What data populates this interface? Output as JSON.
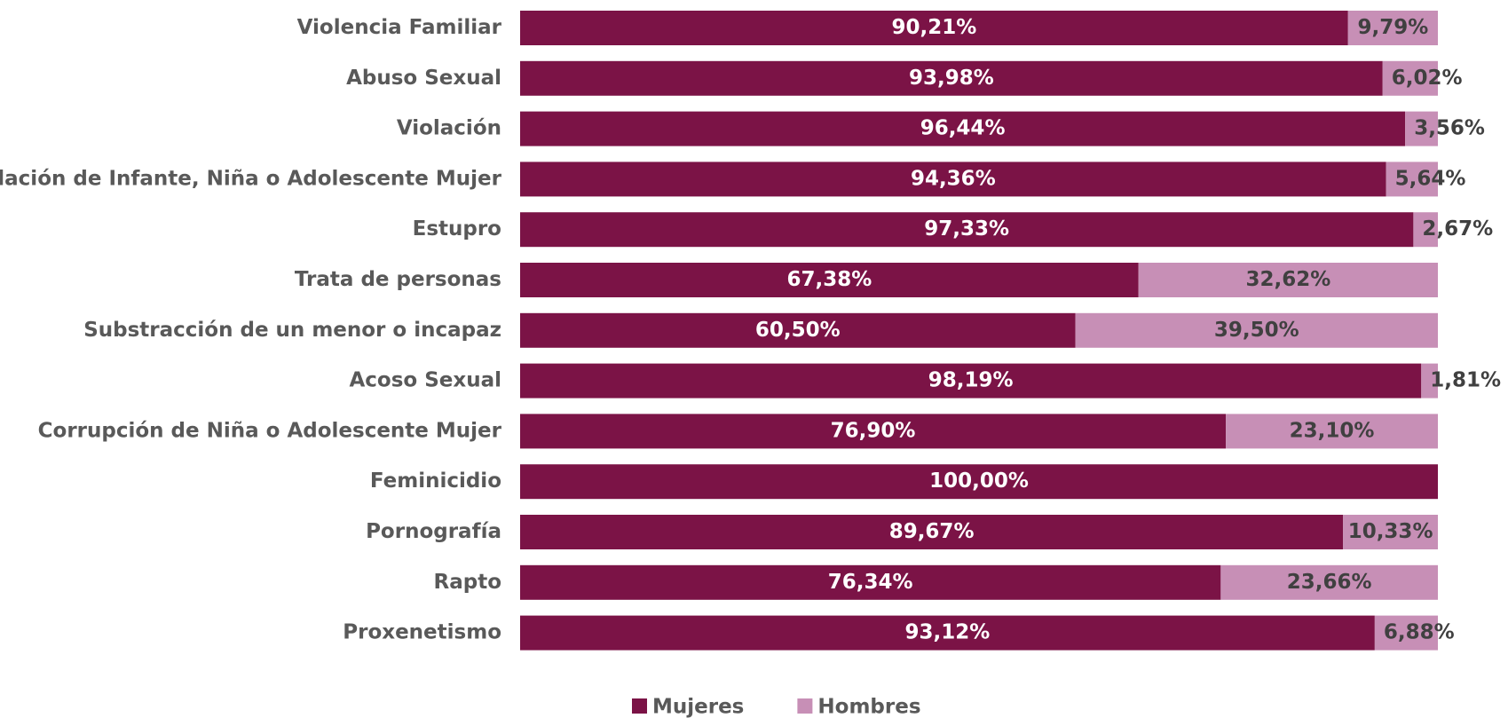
{
  "chart_data": {
    "type": "stacked_barh",
    "categories": [
      "Violencia Familiar",
      "Abuso Sexual",
      "Violación",
      "Violación de Infante, Niña o Adolescente Mujer",
      "Estupro",
      "Trata de personas",
      "Substracción de un menor o incapaz",
      "Acoso Sexual",
      "Corrupción de Niña o Adolescente Mujer",
      "Feminicidio",
      "Pornografía",
      "Rapto",
      "Proxenetismo"
    ],
    "xlim": [
      0,
      100
    ],
    "legend": "bottom",
    "series": [
      {
        "name": "Mujeres",
        "color": "#7b1346",
        "values": [
          90.21,
          93.98,
          96.44,
          94.36,
          97.33,
          67.38,
          60.5,
          98.19,
          76.9,
          100,
          89.67,
          76.34,
          93.12
        ],
        "value_labels": [
          "90,21%",
          "93,98%",
          "96,44%",
          "94,36%",
          "97,33%",
          "67,38%",
          "60,50%",
          "98,19%",
          "76,90%",
          "100,00%",
          "89,67%",
          "76,34%",
          "93,12%"
        ]
      },
      {
        "name": "Hombres",
        "color": "#c78fb6",
        "values": [
          9.79,
          6.02,
          3.56,
          5.64,
          2.67,
          32.62,
          39.5,
          1.81,
          23.1,
          0,
          10.33,
          23.66,
          6.88
        ],
        "value_labels": [
          "9,79%",
          "6,02%",
          "3,56%",
          "5,64%",
          "2,67%",
          "32,62%",
          "39,50%",
          "1,81%",
          "23,10%",
          null,
          "10,33%",
          "23,66%",
          "6,88%"
        ]
      }
    ]
  }
}
